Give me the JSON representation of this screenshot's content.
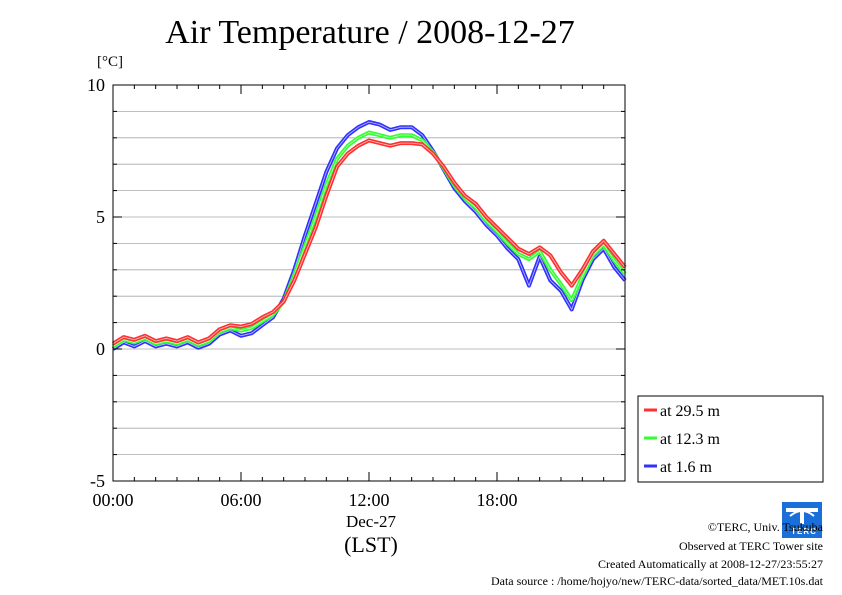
{
  "chart_data": {
    "type": "line",
    "title": "Air Temperature / 2008-12-27",
    "ylabel": "[°C]",
    "xlabel_date": "Dec-27",
    "xlabel": "(LST)",
    "ylim": [
      -5,
      10
    ],
    "xlim": [
      0,
      24
    ],
    "yticks": [
      -5,
      0,
      5,
      10
    ],
    "xticks": [
      0,
      6,
      12,
      18
    ],
    "xtick_labels": [
      "00:00",
      "06:00",
      "12:00",
      "18:00"
    ],
    "grid": true,
    "legend_position": "lower-right-outside",
    "series": [
      {
        "name": "at 29.5 m",
        "color": "#ff3030",
        "x": [
          0,
          0.5,
          1,
          1.5,
          2,
          2.5,
          3,
          3.5,
          4,
          4.5,
          5,
          5.5,
          6,
          6.5,
          7,
          7.5,
          8,
          8.5,
          9,
          9.5,
          10,
          10.5,
          11,
          11.5,
          12,
          12.5,
          13,
          13.5,
          14,
          14.5,
          15,
          15.5,
          16,
          16.5,
          17,
          17.5,
          18,
          18.5,
          19,
          19.5,
          20,
          20.5,
          21,
          21.5,
          22,
          22.5,
          23,
          23.5,
          24
        ],
        "y": [
          0.2,
          0.45,
          0.35,
          0.5,
          0.3,
          0.4,
          0.3,
          0.45,
          0.25,
          0.4,
          0.75,
          0.9,
          0.85,
          0.95,
          1.2,
          1.4,
          1.8,
          2.6,
          3.6,
          4.6,
          5.8,
          6.9,
          7.4,
          7.7,
          7.9,
          7.8,
          7.7,
          7.8,
          7.8,
          7.75,
          7.4,
          6.9,
          6.3,
          5.8,
          5.5,
          5.0,
          4.6,
          4.2,
          3.8,
          3.6,
          3.85,
          3.55,
          2.9,
          2.4,
          3.0,
          3.7,
          4.1,
          3.6,
          3.1
        ]
      },
      {
        "name": "at 12.3 m",
        "color": "#30ff30",
        "x": [
          0,
          0.5,
          1,
          1.5,
          2,
          2.5,
          3,
          3.5,
          4,
          4.5,
          5,
          5.5,
          6,
          6.5,
          7,
          7.5,
          8,
          8.5,
          9,
          9.5,
          10,
          10.5,
          11,
          11.5,
          12,
          12.5,
          13,
          13.5,
          14,
          14.5,
          15,
          15.5,
          16,
          16.5,
          17,
          17.5,
          18,
          18.5,
          19,
          19.5,
          20,
          20.5,
          21,
          21.5,
          22,
          22.5,
          23,
          23.5,
          24
        ],
        "y": [
          0.1,
          0.35,
          0.25,
          0.4,
          0.2,
          0.3,
          0.2,
          0.35,
          0.15,
          0.3,
          0.65,
          0.8,
          0.7,
          0.8,
          1.05,
          1.3,
          1.8,
          2.8,
          3.9,
          5.0,
          6.2,
          7.2,
          7.7,
          8.0,
          8.2,
          8.1,
          8.0,
          8.1,
          8.1,
          7.9,
          7.45,
          6.85,
          6.2,
          5.7,
          5.35,
          4.85,
          4.45,
          4.0,
          3.6,
          3.4,
          3.7,
          3.0,
          2.45,
          1.85,
          2.75,
          3.55,
          3.95,
          3.35,
          2.85
        ]
      },
      {
        "name": "at 1.6 m",
        "color": "#3030ff",
        "x": [
          0,
          0.5,
          1,
          1.5,
          2,
          2.5,
          3,
          3.5,
          4,
          4.5,
          5,
          5.5,
          6,
          6.5,
          7,
          7.5,
          8,
          8.5,
          9,
          9.5,
          10,
          10.5,
          11,
          11.5,
          12,
          12.5,
          13,
          13.5,
          14,
          14.5,
          15,
          15.5,
          16,
          16.5,
          17,
          17.5,
          18,
          18.5,
          19,
          19.5,
          20,
          20.5,
          21,
          21.5,
          22,
          22.5,
          23,
          23.5,
          24
        ],
        "y": [
          0.0,
          0.25,
          0.1,
          0.3,
          0.1,
          0.2,
          0.1,
          0.25,
          0.05,
          0.2,
          0.55,
          0.7,
          0.5,
          0.6,
          0.9,
          1.2,
          1.9,
          3.0,
          4.3,
          5.5,
          6.7,
          7.6,
          8.1,
          8.4,
          8.6,
          8.5,
          8.3,
          8.4,
          8.4,
          8.1,
          7.5,
          6.8,
          6.1,
          5.6,
          5.2,
          4.7,
          4.3,
          3.8,
          3.4,
          2.4,
          3.5,
          2.6,
          2.2,
          1.5,
          2.6,
          3.4,
          3.8,
          3.1,
          2.6
        ]
      }
    ]
  },
  "logo": {
    "name": "terc-logo-icon",
    "text": "TERC",
    "color": "#1a6fd8"
  },
  "footer": {
    "copyright": "©TERC, Univ. Tsukuba",
    "observed": "Observed at TERC Tower site",
    "created": "Created Automatically at 2008-12-27/23:55:27",
    "source": "Data source : /home/hojyo/new/TERC-data/sorted_data/MET.10s.dat"
  }
}
